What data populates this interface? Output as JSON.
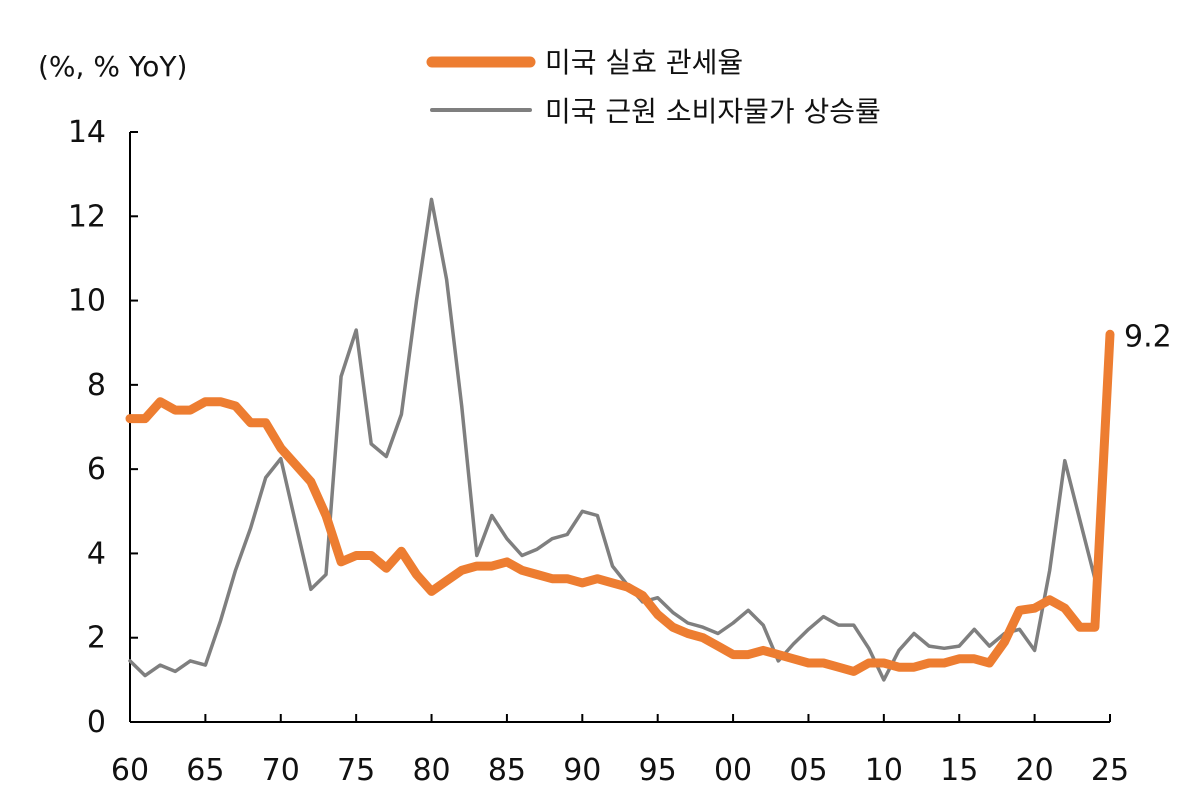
{
  "chart_data": {
    "type": "line",
    "unit_label": "(%, % YoY)",
    "xlim": [
      1960,
      2025
    ],
    "ylim": [
      0,
      14
    ],
    "x_ticks": [
      1960,
      1965,
      1970,
      1975,
      1980,
      1985,
      1990,
      1995,
      2000,
      2005,
      2010,
      2015,
      2020,
      2025
    ],
    "x_tick_labels": [
      "60",
      "65",
      "70",
      "75",
      "80",
      "85",
      "90",
      "95",
      "00",
      "05",
      "10",
      "15",
      "20",
      "25"
    ],
    "y_ticks": [
      0,
      2,
      4,
      6,
      8,
      10,
      12,
      14
    ],
    "y_tick_labels": [
      "0",
      "2",
      "4",
      "6",
      "8",
      "10",
      "12",
      "14"
    ],
    "grid": false,
    "legend_position": "top-center",
    "series": [
      {
        "name": "미국 실효 관세율",
        "color": "#ED7D31",
        "x": [
          1960,
          1961,
          1962,
          1963,
          1964,
          1965,
          1966,
          1967,
          1968,
          1969,
          1970,
          1971,
          1972,
          1973,
          1974,
          1975,
          1976,
          1977,
          1978,
          1979,
          1980,
          1981,
          1982,
          1983,
          1984,
          1985,
          1986,
          1987,
          1988,
          1989,
          1990,
          1991,
          1992,
          1993,
          1994,
          1995,
          1996,
          1997,
          1998,
          1999,
          2000,
          2001,
          2002,
          2003,
          2004,
          2005,
          2006,
          2007,
          2008,
          2009,
          2010,
          2011,
          2012,
          2013,
          2014,
          2015,
          2016,
          2017,
          2018,
          2019,
          2020,
          2021,
          2022,
          2023,
          2024,
          2025
        ],
        "values": [
          7.2,
          7.2,
          7.6,
          7.4,
          7.4,
          7.6,
          7.6,
          7.5,
          7.1,
          7.1,
          6.5,
          6.1,
          5.7,
          4.9,
          3.8,
          3.95,
          3.95,
          3.65,
          4.05,
          3.5,
          3.1,
          3.35,
          3.6,
          3.7,
          3.7,
          3.8,
          3.6,
          3.5,
          3.4,
          3.4,
          3.3,
          3.4,
          3.3,
          3.2,
          3.0,
          2.55,
          2.25,
          2.1,
          2.0,
          1.8,
          1.6,
          1.6,
          1.7,
          1.6,
          1.5,
          1.4,
          1.4,
          1.3,
          1.2,
          1.4,
          1.4,
          1.3,
          1.3,
          1.4,
          1.4,
          1.5,
          1.5,
          1.4,
          1.9,
          2.65,
          2.7,
          2.9,
          2.7,
          2.25,
          2.25,
          9.2
        ]
      },
      {
        "name": "미국 근원 소비자물가 상승률",
        "color": "#7F7F7F",
        "x": [
          1960,
          1961,
          1962,
          1963,
          1964,
          1965,
          1966,
          1967,
          1968,
          1969,
          1970,
          1971,
          1972,
          1973,
          1974,
          1975,
          1976,
          1977,
          1978,
          1979,
          1980,
          1981,
          1982,
          1983,
          1984,
          1985,
          1986,
          1987,
          1988,
          1989,
          1990,
          1991,
          1992,
          1993,
          1994,
          1995,
          1996,
          1997,
          1998,
          1999,
          2000,
          2001,
          2002,
          2003,
          2004,
          2005,
          2006,
          2007,
          2008,
          2009,
          2010,
          2011,
          2012,
          2013,
          2014,
          2015,
          2016,
          2017,
          2018,
          2019,
          2020,
          2021,
          2022,
          2023,
          2024
        ],
        "values": [
          1.45,
          1.1,
          1.35,
          1.2,
          1.45,
          1.35,
          2.4,
          3.6,
          4.6,
          5.8,
          6.25,
          4.7,
          3.15,
          3.5,
          8.2,
          9.3,
          6.6,
          6.3,
          7.3,
          10.0,
          12.4,
          10.5,
          7.5,
          3.95,
          4.9,
          4.35,
          3.95,
          4.1,
          4.35,
          4.45,
          5.0,
          4.9,
          3.7,
          3.25,
          2.85,
          2.95,
          2.6,
          2.35,
          2.25,
          2.1,
          2.35,
          2.65,
          2.3,
          1.45,
          1.85,
          2.2,
          2.5,
          2.3,
          2.3,
          1.75,
          1.0,
          1.7,
          2.1,
          1.8,
          1.75,
          1.8,
          2.2,
          1.8,
          2.1,
          2.2,
          1.7,
          3.6,
          6.2,
          4.8,
          3.4
        ]
      }
    ],
    "annotations": [
      {
        "x": 2025,
        "y": 9.2,
        "text": "9.2"
      }
    ]
  }
}
